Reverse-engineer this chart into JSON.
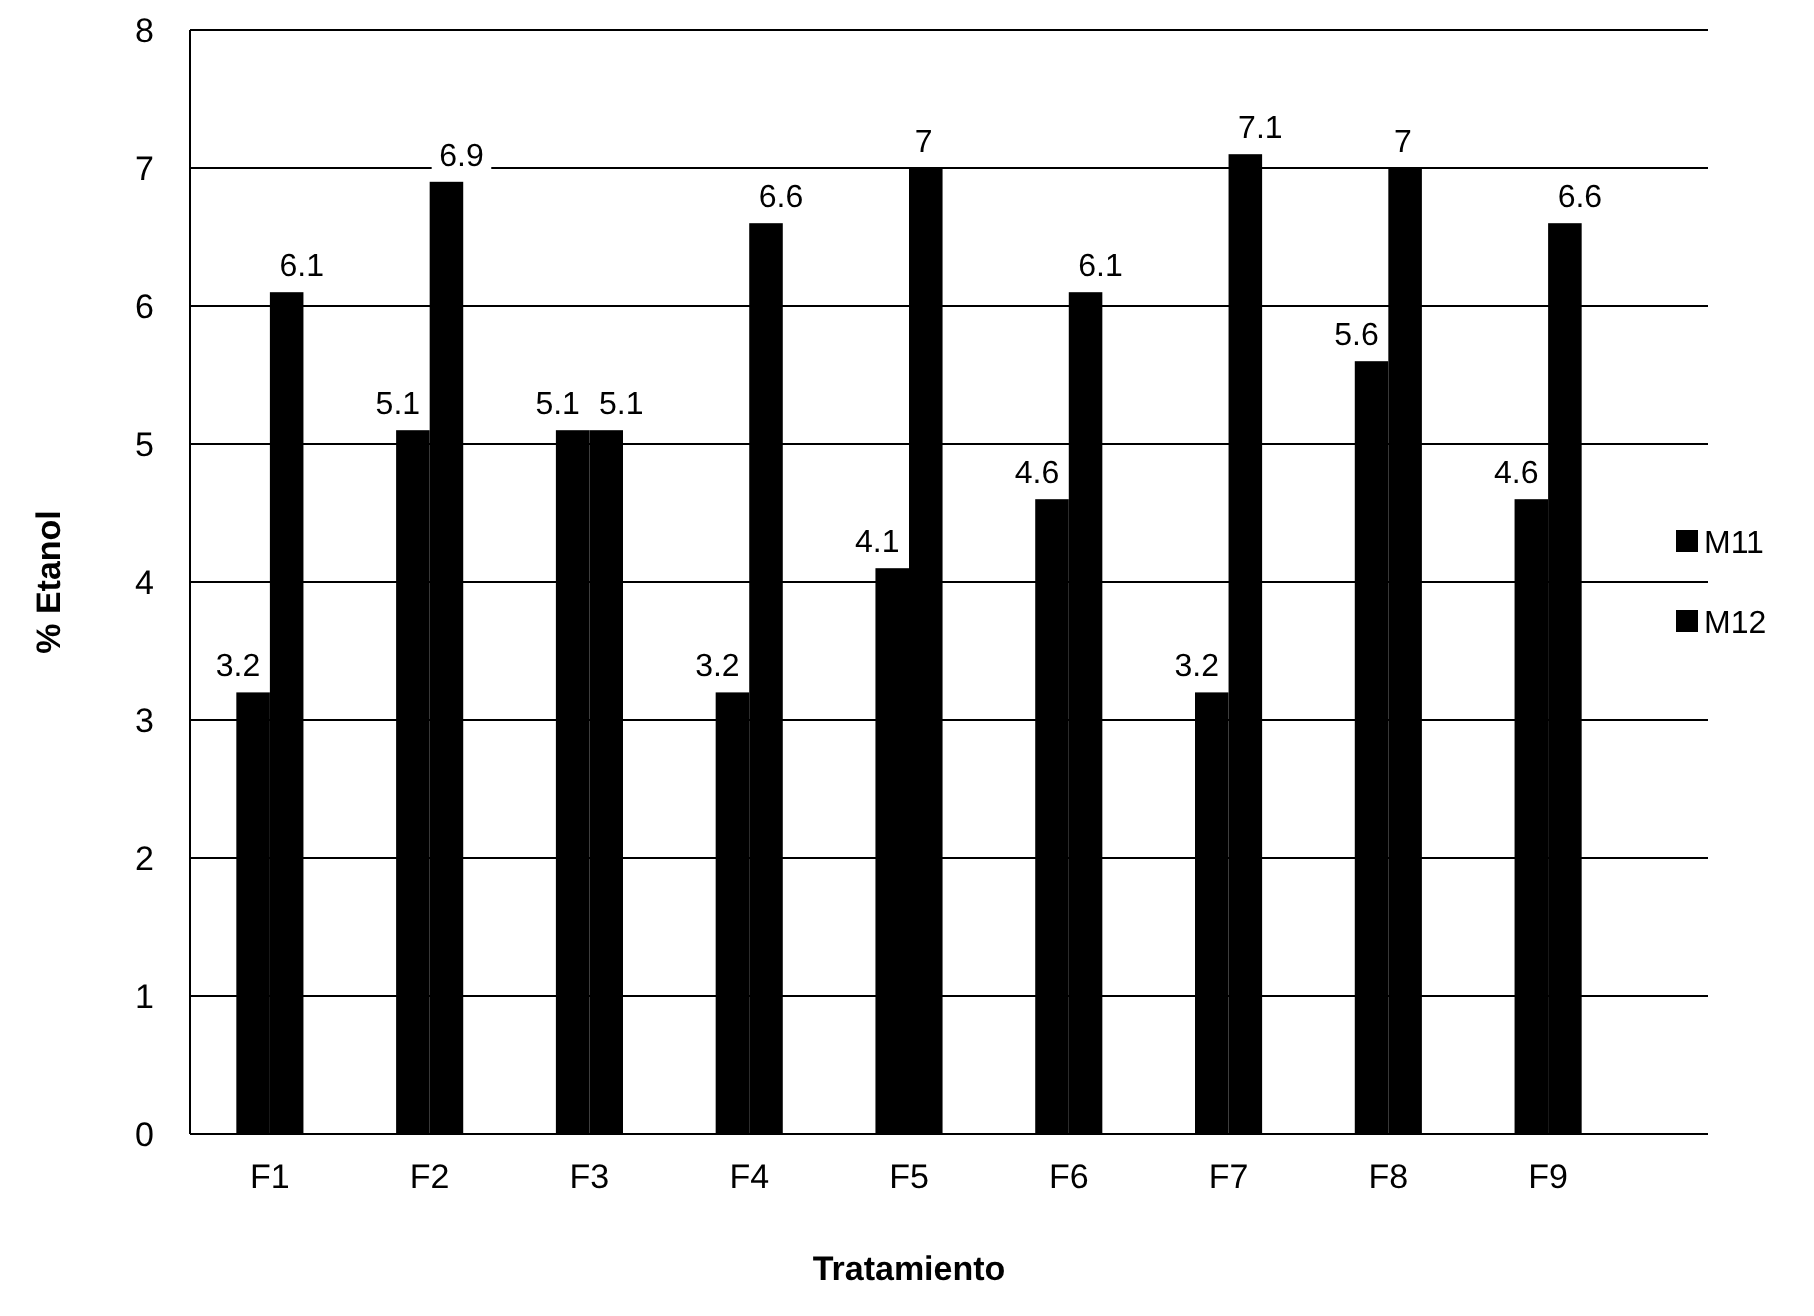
{
  "chart_data": {
    "type": "bar",
    "xlabel": "Tratamiento",
    "ylabel": "% Etanol",
    "categories": [
      "F1",
      "F2",
      "F3",
      "F4",
      "F5",
      "F6",
      "F7",
      "F8",
      "F9"
    ],
    "series": [
      {
        "name": "M11",
        "color": "#000000",
        "values": [
          3.2,
          5.1,
          5.1,
          3.2,
          4.1,
          4.6,
          3.2,
          5.6,
          4.6
        ]
      },
      {
        "name": "M12",
        "color": "#000000",
        "values": [
          6.1,
          6.9,
          5.1,
          6.6,
          7,
          6.1,
          7.1,
          7,
          6.6
        ]
      }
    ],
    "ylim": [
      0,
      8
    ],
    "yticks": [
      0,
      1,
      2,
      3,
      4,
      5,
      6,
      7,
      8
    ],
    "grid": "y",
    "legend": "right",
    "data_labels": true
  }
}
